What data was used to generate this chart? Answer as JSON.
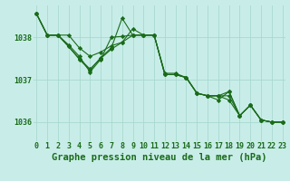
{
  "title": "Graphe pression niveau de la mer (hPa)",
  "bg_color": "#c8ede8",
  "line_color": "#1a6b1a",
  "grid_color": "#a8d8d0",
  "x_ticks": [
    0,
    1,
    2,
    3,
    4,
    5,
    6,
    7,
    8,
    9,
    10,
    11,
    12,
    13,
    14,
    15,
    16,
    17,
    18,
    19,
    20,
    21,
    22,
    23
  ],
  "y_ticks": [
    1036,
    1037,
    1038
  ],
  "ylim": [
    1035.55,
    1038.75
  ],
  "xlim": [
    -0.3,
    23.3
  ],
  "series": [
    [
      1038.55,
      1038.05,
      1038.05,
      1038.05,
      1037.75,
      1037.55,
      1037.65,
      1037.8,
      1037.88,
      1038.05,
      1038.05,
      1038.05,
      1037.15,
      1037.15,
      1037.05,
      1036.68,
      1036.62,
      1036.62,
      1036.62,
      1036.15,
      1036.4,
      1036.05,
      1036.0,
      1036.0
    ],
    [
      1038.55,
      1038.05,
      1038.05,
      1037.78,
      1037.5,
      1037.25,
      1037.5,
      1037.72,
      1037.88,
      1038.2,
      1038.05,
      1038.05,
      1037.12,
      1037.12,
      1037.05,
      1036.68,
      1036.62,
      1036.52,
      1036.72,
      1036.15,
      1036.4,
      1036.05,
      1036.0,
      1036.0
    ],
    [
      1038.55,
      1038.05,
      1038.05,
      1037.78,
      1037.48,
      1037.22,
      1037.52,
      1037.75,
      1038.45,
      1038.05,
      1038.05,
      1038.05,
      1037.12,
      1037.12,
      1037.05,
      1036.68,
      1036.62,
      1036.62,
      1036.72,
      1036.15,
      1036.4,
      1036.05,
      1036.0,
      1036.0
    ],
    [
      1038.55,
      1038.05,
      1038.05,
      1037.82,
      1037.55,
      1037.18,
      1037.48,
      1038.0,
      1038.02,
      1038.05,
      1038.05,
      1038.05,
      1037.12,
      1037.12,
      1037.05,
      1036.68,
      1036.62,
      1036.62,
      1036.52,
      1036.15,
      1036.4,
      1036.05,
      1036.0,
      1036.0
    ]
  ],
  "marker": "D",
  "marker_size": 2.2,
  "line_width": 0.8,
  "title_fontsize": 7.5,
  "tick_fontsize": 6.0
}
